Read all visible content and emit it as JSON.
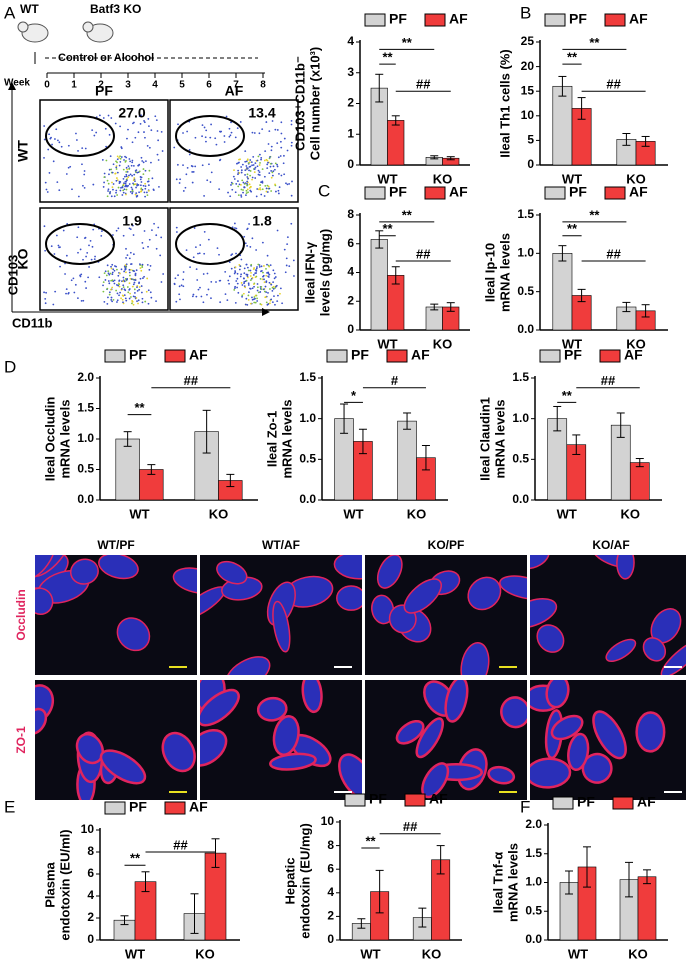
{
  "panels": {
    "letters": [
      "A",
      "B",
      "C",
      "D",
      "E",
      "F"
    ],
    "schematic": {
      "wt": "WT",
      "ko": "Batf3 KO",
      "treatment": "Control or Alcohol",
      "week_label": "Week",
      "weeks": [
        0,
        1,
        2,
        3,
        4,
        5,
        6,
        7,
        8
      ]
    },
    "flow": {
      "columns": [
        "PF",
        "AF"
      ],
      "rows": [
        "WT",
        "KO"
      ],
      "gates": [
        {
          "value": 27,
          "label": "27.0"
        },
        13.4,
        1.9,
        1.8
      ],
      "x_axis": "CD11b",
      "y_axis": "CD103"
    },
    "microscopy": {
      "columns": [
        "WT/PF",
        "WT/AF",
        "KO/PF",
        "KO/AF"
      ],
      "rows": [
        "Occludin",
        "ZO-1"
      ]
    }
  },
  "chart_data": [
    {
      "type": "bar",
      "ylabel": [
        "CD103⁺CD11b⁻",
        "Cell number (x10³)"
      ],
      "categories": [
        "WT",
        "KO"
      ],
      "series": [
        {
          "name": "PF",
          "color": "#d3d3d3",
          "values": [
            2.5,
            0.25
          ],
          "errors": [
            0.45,
            0.05
          ]
        },
        {
          "name": "AF",
          "color": "#f03c3c",
          "values": [
            1.45,
            0.22
          ],
          "errors": [
            0.15,
            0.05
          ]
        }
      ],
      "ylim": [
        0,
        4
      ],
      "yticks": [
        0,
        1,
        2,
        3,
        4
      ],
      "annotations": [
        "**",
        "**",
        "##"
      ]
    },
    {
      "type": "bar",
      "ylabel": [
        "Ileal Th1 cells (%)"
      ],
      "categories": [
        "WT",
        "KO"
      ],
      "series": [
        {
          "name": "PF",
          "color": "#d3d3d3",
          "values": [
            16,
            5.2
          ],
          "errors": [
            2,
            1.2
          ]
        },
        {
          "name": "AF",
          "color": "#f03c3c",
          "values": [
            11.5,
            4.8
          ],
          "errors": [
            2.2,
            1
          ]
        }
      ],
      "ylim": [
        0,
        25
      ],
      "yticks": [
        0,
        5,
        10,
        15,
        20,
        25
      ],
      "annotations": [
        "**",
        "**",
        "##"
      ]
    },
    {
      "type": "bar",
      "ylabel": [
        "Ileal IFN-γ",
        "levels (pg/mg)"
      ],
      "categories": [
        "WT",
        "KO"
      ],
      "series": [
        {
          "name": "PF",
          "color": "#d3d3d3",
          "values": [
            6.3,
            1.6
          ],
          "errors": [
            0.6,
            0.2
          ]
        },
        {
          "name": "AF",
          "color": "#f03c3c",
          "values": [
            3.8,
            1.6
          ],
          "errors": [
            0.6,
            0.3
          ]
        }
      ],
      "ylim": [
        0,
        8
      ],
      "yticks": [
        0,
        2,
        4,
        6,
        8
      ],
      "annotations": [
        "**",
        "**",
        "##"
      ]
    },
    {
      "type": "bar",
      "ylabel": [
        "Ileal Ip-10",
        "mRNA levels"
      ],
      "categories": [
        "WT",
        "KO"
      ],
      "series": [
        {
          "name": "PF",
          "color": "#d3d3d3",
          "values": [
            1.0,
            0.3
          ],
          "errors": [
            0.1,
            0.06
          ]
        },
        {
          "name": "AF",
          "color": "#f03c3c",
          "values": [
            0.45,
            0.25
          ],
          "errors": [
            0.08,
            0.08
          ]
        }
      ],
      "ylim": [
        0,
        1.5
      ],
      "yticks": [
        {
          "value": 0,
          "label": "0.0"
        },
        0.5,
        {
          "value": 1,
          "label": "1.0"
        },
        1.5
      ],
      "annotations": [
        "**",
        "**",
        "##"
      ]
    },
    {
      "type": "bar",
      "ylabel": [
        "Ileal Occludin",
        "mRNA levels"
      ],
      "categories": [
        "WT",
        "KO"
      ],
      "series": [
        {
          "name": "PF",
          "color": "#d3d3d3",
          "values": [
            1.0,
            1.12
          ],
          "errors": [
            0.12,
            0.35
          ]
        },
        {
          "name": "AF",
          "color": "#f03c3c",
          "values": [
            0.5,
            0.32
          ],
          "errors": [
            0.08,
            0.1
          ]
        }
      ],
      "ylim": [
        0,
        2
      ],
      "yticks": [
        {
          "value": 0,
          "label": "0.0"
        },
        0.5,
        {
          "value": 1,
          "label": "1.0"
        },
        1.5,
        {
          "value": 2,
          "label": "2.0"
        }
      ],
      "annotations": [
        "**",
        "##"
      ]
    },
    {
      "type": "bar",
      "ylabel": [
        "Ileal Zo-1",
        "mRNA levels"
      ],
      "categories": [
        "WT",
        "KO"
      ],
      "series": [
        {
          "name": "PF",
          "color": "#d3d3d3",
          "values": [
            1.0,
            0.97
          ],
          "errors": [
            0.18,
            0.1
          ]
        },
        {
          "name": "AF",
          "color": "#f03c3c",
          "values": [
            0.72,
            0.52
          ],
          "errors": [
            0.15,
            0.15
          ]
        }
      ],
      "ylim": [
        0,
        1.5
      ],
      "yticks": [
        {
          "value": 0,
          "label": "0.0"
        },
        0.5,
        {
          "value": 1,
          "label": "1.0"
        },
        1.5
      ],
      "annotations": [
        "*",
        "#"
      ]
    },
    {
      "type": "bar",
      "ylabel": [
        "Ileal Claudin1",
        "mRNA levels"
      ],
      "categories": [
        "WT",
        "KO"
      ],
      "series": [
        {
          "name": "PF",
          "color": "#d3d3d3",
          "values": [
            1.0,
            0.92
          ],
          "errors": [
            0.15,
            0.15
          ]
        },
        {
          "name": "AF",
          "color": "#f03c3c",
          "values": [
            0.68,
            0.46
          ],
          "errors": [
            0.12,
            0.05
          ]
        }
      ],
      "ylim": [
        0,
        1.5
      ],
      "yticks": [
        {
          "value": 0,
          "label": "0.0"
        },
        0.5,
        {
          "value": 1,
          "label": "1.0"
        },
        1.5
      ],
      "annotations": [
        "**",
        "##"
      ]
    },
    {
      "type": "bar",
      "ylabel": [
        "Plasma",
        "endotoxin (EU/ml)"
      ],
      "categories": [
        "WT",
        "KO"
      ],
      "series": [
        {
          "name": "PF",
          "color": "#d3d3d3",
          "values": [
            1.8,
            2.4
          ],
          "errors": [
            0.4,
            1.8
          ]
        },
        {
          "name": "AF",
          "color": "#f03c3c",
          "values": [
            5.3,
            7.9
          ],
          "errors": [
            0.9,
            1.3
          ]
        }
      ],
      "ylim": [
        0,
        10
      ],
      "yticks": [
        0,
        2,
        4,
        6,
        8,
        10
      ],
      "annotations": [
        "**",
        "##"
      ]
    },
    {
      "type": "bar",
      "ylabel": [
        "Hepatic",
        "endotoxin (EU/mg)"
      ],
      "categories": [
        "WT",
        "KO"
      ],
      "series": [
        {
          "name": "PF",
          "color": "#d3d3d3",
          "values": [
            1.4,
            1.9
          ],
          "errors": [
            0.4,
            0.8
          ]
        },
        {
          "name": "AF",
          "color": "#f03c3c",
          "values": [
            4.1,
            6.8
          ],
          "errors": [
            1.8,
            1.2
          ]
        }
      ],
      "ylim": [
        0,
        10
      ],
      "yticks": [
        0,
        2,
        4,
        6,
        8,
        10
      ],
      "annotations": [
        "**",
        "##"
      ]
    },
    {
      "type": "bar",
      "ylabel": [
        "Ileal Tnf-α",
        "mRNA levels"
      ],
      "categories": [
        "WT",
        "KO"
      ],
      "series": [
        {
          "name": "PF",
          "color": "#d3d3d3",
          "values": [
            1.0,
            1.05
          ],
          "errors": [
            0.2,
            0.3
          ]
        },
        {
          "name": "AF",
          "color": "#f03c3c",
          "values": [
            1.27,
            1.1
          ],
          "errors": [
            0.35,
            0.12
          ]
        }
      ],
      "ylim": [
        0,
        2
      ],
      "yticks": [
        {
          "value": 0,
          "label": "0.0"
        },
        0.5,
        {
          "value": 1,
          "label": "1.0"
        },
        1.5,
        {
          "value": 2,
          "label": "2.0"
        }
      ],
      "annotations": []
    }
  ]
}
